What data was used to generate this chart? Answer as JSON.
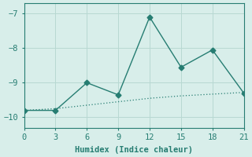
{
  "xlabel": "Humidex (Indice chaleur)",
  "ylabel": "",
  "x": [
    0,
    3,
    6,
    9,
    12,
    15,
    18,
    21
  ],
  "y_main": [
    -9.8,
    -9.8,
    -9.0,
    -9.35,
    -7.1,
    -8.55,
    -8.05,
    -9.3
  ],
  "y_trend": [
    -9.8,
    -9.75,
    -9.65,
    -9.55,
    -9.45,
    -9.38,
    -9.33,
    -9.28
  ],
  "line_color": "#267d72",
  "bg_color": "#d8eeea",
  "grid_color": "#b8d8d2",
  "border_color": "#267d72",
  "xlim": [
    0,
    21
  ],
  "ylim": [
    -10.3,
    -6.7
  ],
  "yticks": [
    -10,
    -9,
    -8,
    -7
  ],
  "xticks": [
    0,
    3,
    6,
    9,
    12,
    15,
    18,
    21
  ],
  "marker": "D",
  "markersize": 3.5,
  "linewidth": 1.0,
  "font_color": "#267d72",
  "fontsize": 7.5,
  "fontfamily": "monospace"
}
